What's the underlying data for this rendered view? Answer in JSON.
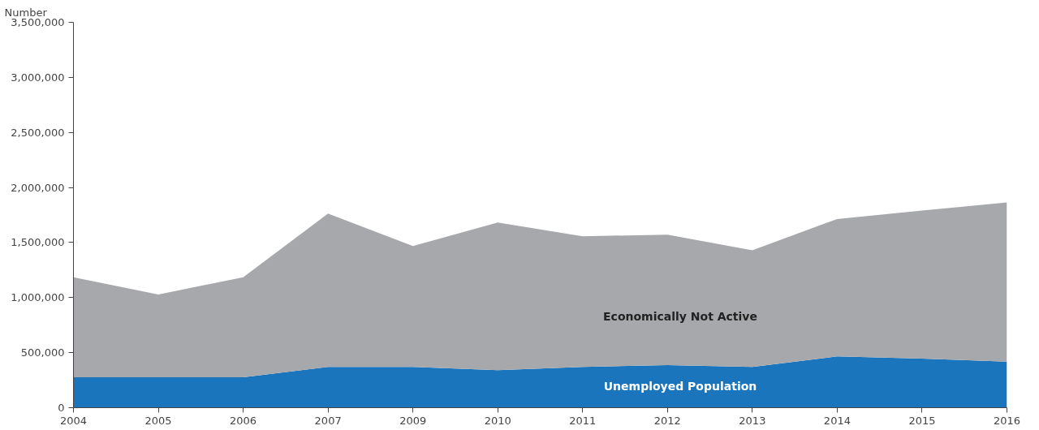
{
  "chart_data": {
    "type": "area",
    "stacked": true,
    "ylabel": "Number",
    "categories": [
      "2004",
      "2005",
      "2006",
      "2007",
      "2009",
      "2010",
      "2011",
      "2012",
      "2013",
      "2014",
      "2015",
      "2016"
    ],
    "series": [
      {
        "name": "Unemployed Population",
        "color": "#1a75bc",
        "values": [
          276000,
          276000,
          276000,
          371000,
          371000,
          340000,
          371000,
          387000,
          371000,
          466000,
          445000,
          419000
        ]
      },
      {
        "name": "Economically Not Active",
        "color": "#a7a8ab",
        "values": [
          909000,
          751000,
          909000,
          1391000,
          1098000,
          1342000,
          1185000,
          1185000,
          1059000,
          1248000,
          1345000,
          1445000
        ]
      }
    ],
    "ylim": [
      0,
      3500000
    ],
    "yticks": [
      {
        "value": 0,
        "label": "0"
      },
      {
        "value": 500000,
        "label": "500,000"
      },
      {
        "value": 1000000,
        "label": "1,000,000"
      },
      {
        "value": 1500000,
        "label": "1,500,000"
      },
      {
        "value": 2000000,
        "label": "2,000,000"
      },
      {
        "value": 2500000,
        "label": "2,500,000"
      },
      {
        "value": 3000000,
        "label": "3,000,000"
      },
      {
        "value": 3500000,
        "label": "3,500,000"
      }
    ],
    "grid": false
  }
}
